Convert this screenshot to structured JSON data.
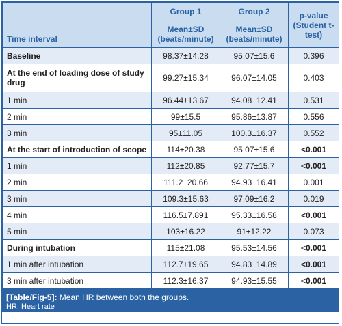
{
  "table": {
    "headers": {
      "time_interval": "Time interval",
      "group1": "Group 1",
      "group2": "Group 2",
      "group1_sub": "Mean±SD (beats/minute)",
      "group2_sub": "Mean±SD (beats/minute)",
      "pvalue": "p-value (Student t-test)"
    },
    "rows": [
      {
        "label": "Baseline",
        "label_bold": true,
        "g1": "98.37±14.28",
        "g2": "95.07±15.6",
        "p": "0.396",
        "p_bold": false
      },
      {
        "label": "At the end of loading dose of study drug",
        "label_bold": true,
        "g1": "99.27±15.34",
        "g2": "96.07±14.05",
        "p": "0.403",
        "p_bold": false
      },
      {
        "label": "1 min",
        "label_bold": false,
        "g1": "96.44±13.67",
        "g2": "94.08±12.41",
        "p": "0.531",
        "p_bold": false
      },
      {
        "label": "2 min",
        "label_bold": false,
        "g1": "99±15.5",
        "g2": "95.86±13.87",
        "p": "0.556",
        "p_bold": false
      },
      {
        "label": "3 min",
        "label_bold": false,
        "g1": "95±11.05",
        "g2": "100.3±16.37",
        "p": "0.552",
        "p_bold": false
      },
      {
        "label": "At the start of introduction of scope",
        "label_bold": true,
        "g1": "114±20.38",
        "g2": "95.07±15.6",
        "p": "<0.001",
        "p_bold": true
      },
      {
        "label": "1 min",
        "label_bold": false,
        "g1": "112±20.85",
        "g2": "92.77±15.7",
        "p": "<0.001",
        "p_bold": true
      },
      {
        "label": "2 min",
        "label_bold": false,
        "g1": "111.2±20.66",
        "g2": "94.93±16.41",
        "p": "0.001",
        "p_bold": false
      },
      {
        "label": "3 min",
        "label_bold": false,
        "g1": "109.3±15.63",
        "g2": "97.09±16.2",
        "p": "0.019",
        "p_bold": false
      },
      {
        "label": "4 min",
        "label_bold": false,
        "g1": "116.5±7.891",
        "g2": "95.33±16.58",
        "p": "<0.001",
        "p_bold": true
      },
      {
        "label": "5 min",
        "label_bold": false,
        "g1": "103±16.22",
        "g2": "91±12.22",
        "p": "0.073",
        "p_bold": false
      },
      {
        "label": "During intubation",
        "label_bold": true,
        "g1": "115±21.08",
        "g2": "95.53±14.56",
        "p": "<0.001",
        "p_bold": true
      },
      {
        "label": "1 min after intubation",
        "label_bold": false,
        "g1": "112.7±19.65",
        "g2": "94.83±14.89",
        "p": "<0.001",
        "p_bold": true
      },
      {
        "label": "3 min after intubation",
        "label_bold": false,
        "g1": "112.3±16.37",
        "g2": "94.93±15.55",
        "p": "<0.001",
        "p_bold": true
      }
    ]
  },
  "caption": {
    "tag": "[Table/Fig-5]:",
    "text": " Mean HR between both the groups.",
    "abbr": "HR: Heart rate"
  },
  "colors": {
    "border": "#2a62a4",
    "header_bg": "#c9dcf0",
    "stripe_bg": "#e3ecf6",
    "caption_bg": "#2a62a4"
  }
}
